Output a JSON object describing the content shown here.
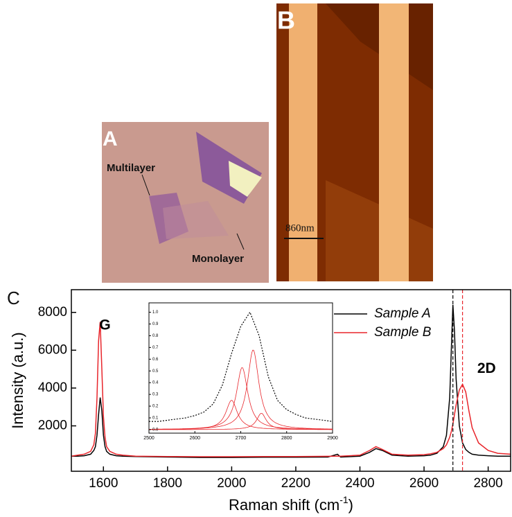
{
  "panels": {
    "a_label": "A",
    "multilayer": "Multilayer",
    "monolayer": "Monolayer",
    "b_label": "B",
    "scale_bar": "860nm",
    "c_label": "C"
  },
  "chart_data": {
    "type": "line",
    "y_label": "Intensity (a.u.)",
    "x_label": {
      "text": "Raman shift (cm",
      "sup": "-1",
      "end": ")"
    },
    "xlim": [
      1500,
      2870
    ],
    "xticks": [
      1600,
      1800,
      2000,
      2200,
      2400,
      2600,
      2800
    ],
    "ylim": [
      -400,
      9200
    ],
    "yticks": [
      2000,
      4000,
      6000,
      8000
    ],
    "annotations": [
      {
        "text": "G",
        "x": 1605,
        "y": 7300
      },
      {
        "text": "2D",
        "x": 2795,
        "y": 5000
      }
    ],
    "vlines": [
      {
        "x": 2690,
        "color": "#000000"
      },
      {
        "x": 2720,
        "color": "#e8242a"
      }
    ],
    "x": [
      1500,
      1520,
      1540,
      1560,
      1570,
      1575,
      1580,
      1585,
      1590,
      1595,
      1600,
      1605,
      1610,
      1620,
      1640,
      1660,
      1700,
      1800,
      1900,
      2000,
      2100,
      2200,
      2300,
      2330,
      2340,
      2400,
      2430,
      2450,
      2470,
      2500,
      2550,
      2600,
      2620,
      2640,
      2660,
      2670,
      2680,
      2685,
      2690,
      2695,
      2700,
      2710,
      2720,
      2730,
      2740,
      2750,
      2770,
      2800,
      2830,
      2870
    ],
    "series": [
      {
        "name": "Sample A",
        "color": "#000000",
        "values": [
          400,
          400,
          420,
          500,
          700,
          900,
          1500,
          2600,
          3500,
          2800,
          1500,
          900,
          650,
          500,
          420,
          400,
          380,
          350,
          330,
          330,
          340,
          340,
          350,
          500,
          350,
          400,
          600,
          800,
          700,
          450,
          400,
          420,
          450,
          550,
          900,
          1500,
          3500,
          6000,
          8400,
          7000,
          4500,
          2000,
          1100,
          750,
          600,
          500,
          450,
          420,
          400,
          400
        ]
      },
      {
        "name": "Sample B",
        "color": "#e8242a",
        "values": [
          400,
          450,
          500,
          650,
          1000,
          1600,
          3500,
          6500,
          7500,
          5000,
          2500,
          1400,
          900,
          650,
          500,
          450,
          400,
          380,
          370,
          370,
          380,
          380,
          390,
          400,
          400,
          450,
          700,
          900,
          750,
          500,
          450,
          480,
          520,
          600,
          800,
          1000,
          1400,
          1700,
          2100,
          2600,
          3100,
          3900,
          4200,
          3800,
          2800,
          1900,
          1100,
          700,
          550,
          500
        ]
      }
    ],
    "inset": {
      "xlim": [
        2500,
        2900
      ],
      "xticks": [
        2500,
        2600,
        2700,
        2800,
        2900
      ],
      "ylim": [
        -0.03,
        1.08
      ],
      "yticks": [
        {
          "value": 0,
          "label": "0.0"
        },
        0.1,
        0.2,
        0.3,
        0.4,
        0.5,
        0.6,
        0.7,
        0.8,
        0.9,
        {
          "value": 1,
          "label": "1.0"
        }
      ],
      "x": [
        2500,
        2520,
        2540,
        2560,
        2580,
        2600,
        2620,
        2640,
        2660,
        2680,
        2700,
        2720,
        2740,
        2760,
        2780,
        2800,
        2820,
        2840,
        2860,
        2880,
        2900
      ],
      "values": [
        0.07,
        0.07,
        0.08,
        0.09,
        0.1,
        0.12,
        0.15,
        0.22,
        0.38,
        0.65,
        0.88,
        1.0,
        0.8,
        0.45,
        0.25,
        0.17,
        0.13,
        0.1,
        0.09,
        0.08,
        0.07
      ],
      "components": [
        {
          "center": 2680,
          "height": 0.25,
          "width": 30
        },
        {
          "center": 2703,
          "height": 0.53,
          "width": 30
        },
        {
          "center": 2727,
          "height": 0.68,
          "width": 30
        },
        {
          "center": 2745,
          "height": 0.14,
          "width": 25
        }
      ],
      "component_color": "#e8242a"
    }
  }
}
